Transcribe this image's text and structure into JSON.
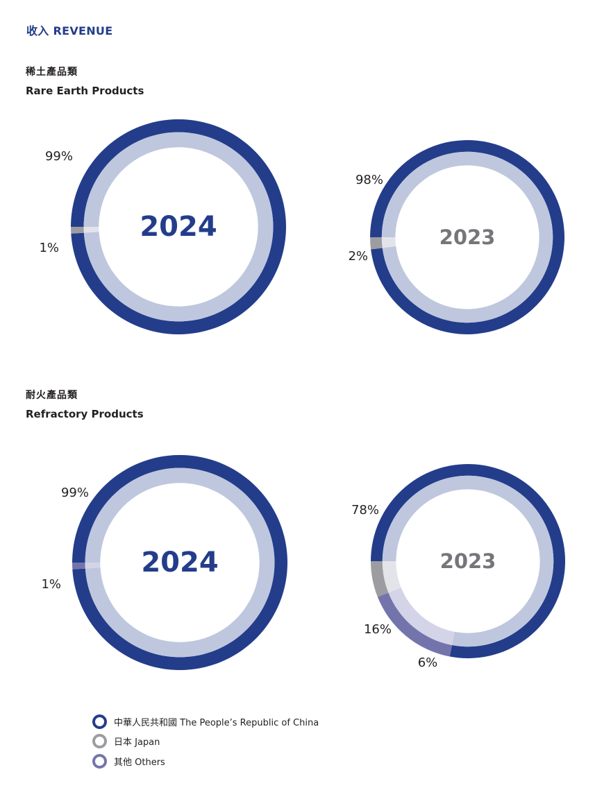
{
  "page_title": "收入 REVENUE",
  "sections": [
    {
      "title_zh": "稀土產品類",
      "title_en": "Rare Earth Products"
    },
    {
      "title_zh": "耐火產品類",
      "title_en": "Refractory Products"
    }
  ],
  "colors": {
    "china": "#233d8b",
    "china_inner": "#bec7dd",
    "japan": "#9c9ca1",
    "japan_inner": "#e3e4ea",
    "others": "#7474ad",
    "others_inner": "#d3d4e8",
    "year_current": "#233d8b",
    "year_previous": "#75767a"
  },
  "legend": [
    {
      "key": "china",
      "label": "中華人民共和國 The People’s Republic of China"
    },
    {
      "key": "japan",
      "label": "日本 Japan"
    },
    {
      "key": "others",
      "label": "其他 Others"
    }
  ],
  "chart_data": [
    {
      "type": "pie",
      "chart": "donut",
      "section": "稀土產品類 Rare Earth Products",
      "center_label": "2024",
      "slices": [
        {
          "key": "china",
          "value": 99,
          "label": "99%"
        },
        {
          "key": "japan",
          "value": 1,
          "label": "1%"
        }
      ]
    },
    {
      "type": "pie",
      "chart": "donut",
      "section": "稀土產品類 Rare Earth Products",
      "center_label": "2023",
      "slices": [
        {
          "key": "china",
          "value": 98,
          "label": "98%"
        },
        {
          "key": "japan",
          "value": 2,
          "label": "2%"
        }
      ]
    },
    {
      "type": "pie",
      "chart": "donut",
      "section": "耐火產品類 Refractory Products",
      "center_label": "2024",
      "slices": [
        {
          "key": "china",
          "value": 99,
          "label": "99%"
        },
        {
          "key": "others",
          "value": 1,
          "label": "1%"
        }
      ]
    },
    {
      "type": "pie",
      "chart": "donut",
      "section": "耐火產品類 Refractory Products",
      "center_label": "2023",
      "slices": [
        {
          "key": "china",
          "value": 78,
          "label": "78%"
        },
        {
          "key": "others",
          "value": 16,
          "label": "16%"
        },
        {
          "key": "japan",
          "value": 6,
          "label": "6%"
        }
      ]
    }
  ]
}
